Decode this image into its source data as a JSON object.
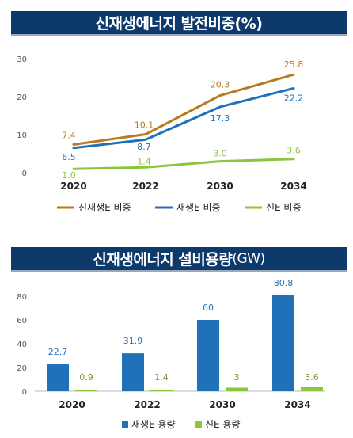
{
  "chart_data": [
    {
      "type": "line",
      "title": "신재생에너지 발전비중(%)",
      "categories": [
        "2020",
        "2022",
        "2030",
        "2034"
      ],
      "ylim": [
        0,
        30
      ],
      "yticks": [
        0,
        10,
        20,
        30
      ],
      "grid": false,
      "legend_position": "bottom",
      "series": [
        {
          "name": "신재생E 비중",
          "values": [
            7.4,
            10.1,
            20.3,
            25.8
          ],
          "color": "#b87a1e",
          "labels": [
            "7.4",
            "10.1",
            "20.3",
            "25.8"
          ]
        },
        {
          "name": "재생E 비중",
          "values": [
            6.5,
            8.7,
            17.3,
            22.2
          ],
          "color": "#1f72b8",
          "labels": [
            "6.5",
            "8.7",
            "17.3",
            "22.2"
          ]
        },
        {
          "name": "신E 비중",
          "values": [
            1.0,
            1.4,
            3.0,
            3.6
          ],
          "color": "#8cc63f",
          "labels": [
            "1.0",
            "1.4",
            "3.0",
            "3.6"
          ]
        }
      ]
    },
    {
      "type": "bar",
      "title_main": "신재생에너지 설비용량",
      "title_unit": "(GW)",
      "categories": [
        "2020",
        "2022",
        "2030",
        "2034"
      ],
      "ylim": [
        0,
        80
      ],
      "yticks": [
        0,
        20,
        40,
        60,
        80
      ],
      "grid": false,
      "legend_position": "bottom",
      "series": [
        {
          "name": "재생E 용량",
          "values": [
            22.7,
            31.9,
            60,
            80.8
          ],
          "color": "#1f72b8",
          "labels": [
            "22.7",
            "31.9",
            "60",
            "80.8"
          ]
        },
        {
          "name": "신E 용량",
          "values": [
            0.9,
            1.4,
            3,
            3.6
          ],
          "color": "#8cc63f",
          "labels": [
            "0.9",
            "1.4",
            "3",
            "3.6"
          ]
        }
      ]
    }
  ]
}
